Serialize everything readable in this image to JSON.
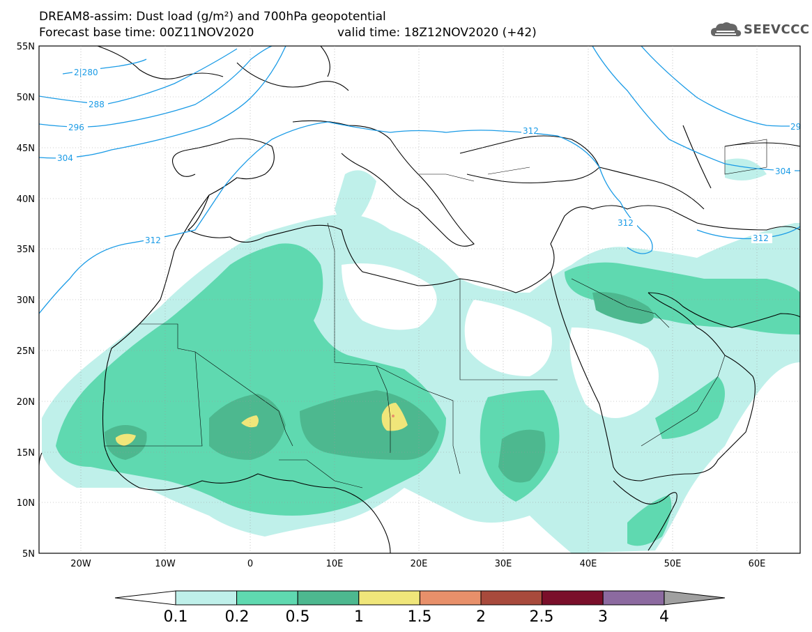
{
  "header": {
    "title_line1": "DREAM8-assim: Dust load (g/m²) and 700hPa geopotential",
    "base_time": "Forecast base time: 00Z11NOV2020",
    "valid_time": "valid time: 18Z12NOV2020 (+42)",
    "logo_text": "SEEVCCC"
  },
  "axes": {
    "lat_labels": [
      "55N",
      "50N",
      "45N",
      "40N",
      "35N",
      "30N",
      "25N",
      "20N",
      "15N",
      "10N",
      "5N"
    ],
    "lon_labels": [
      "20W",
      "10W",
      "0",
      "10E",
      "20E",
      "30E",
      "40E",
      "50E",
      "60E"
    ]
  },
  "contour_labels": [
    "2|280",
    "288",
    "296",
    "304",
    "312",
    "312",
    "312",
    "304",
    "312",
    "29"
  ],
  "colorbar": {
    "levels": [
      "0.1",
      "0.2",
      "0.5",
      "1",
      "1.5",
      "2",
      "2.5",
      "3",
      "4"
    ],
    "colors": [
      "#bff0ea",
      "#5fd9b0",
      "#4db88f",
      "#f0e67a",
      "#e8906a",
      "#a84a3c",
      "#7a0f2a",
      "#8c6aa0"
    ],
    "under_color": "#ffffff",
    "over_color": "#a0a0a0"
  },
  "map_colors": {
    "contour_line": "#1a9be6",
    "coastline": "#000000"
  }
}
